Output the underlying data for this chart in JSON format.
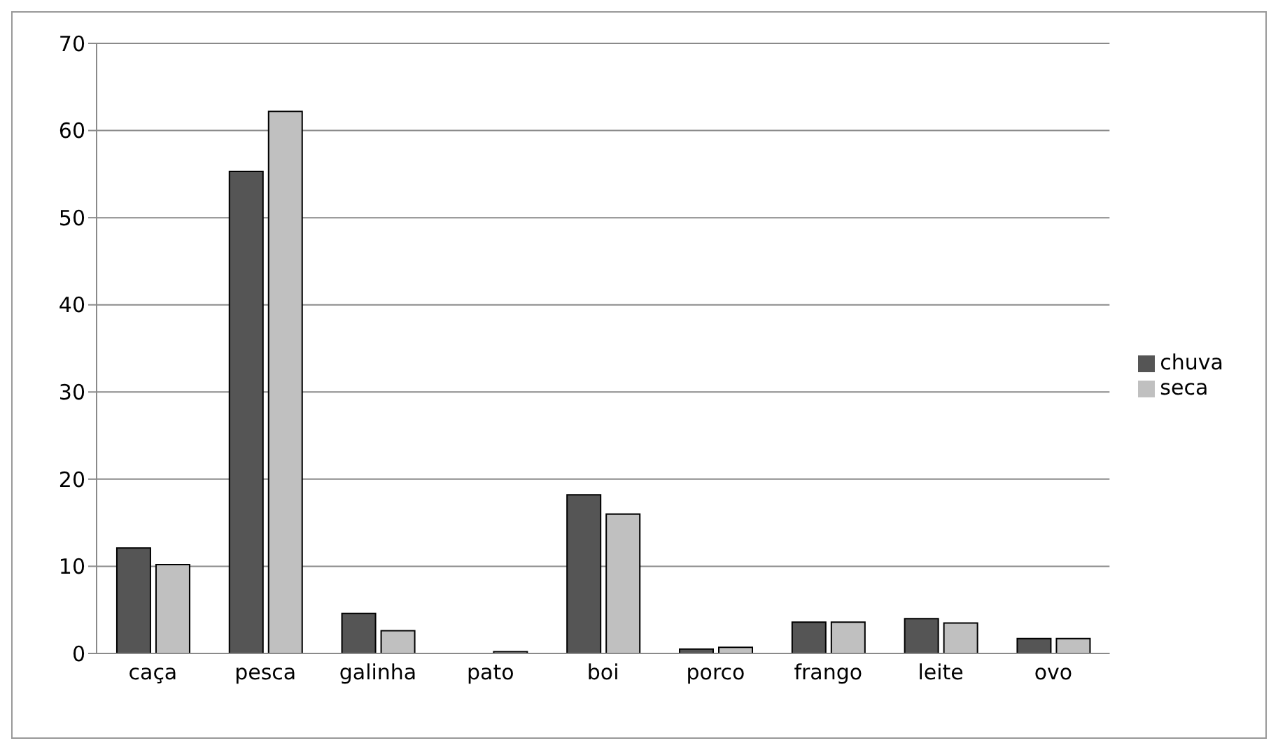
{
  "chart_data": {
    "type": "bar",
    "categories": [
      "caça",
      "pesca",
      "galinha",
      "pato",
      "boi",
      "porco",
      "frango",
      "leite",
      "ovo"
    ],
    "series": [
      {
        "name": "chuva",
        "color": "#555555",
        "values": [
          12.1,
          55.3,
          4.6,
          0,
          18.2,
          0.5,
          3.6,
          4.0,
          1.7
        ]
      },
      {
        "name": "seca",
        "color": "#c0c0c0",
        "values": [
          10.2,
          62.2,
          2.6,
          0.2,
          16.0,
          0.7,
          3.6,
          3.5,
          1.7
        ]
      }
    ],
    "ylim": [
      0,
      70
    ],
    "yticks": [
      0,
      10,
      20,
      30,
      40,
      50,
      60,
      70
    ],
    "grid": "y",
    "legend": "right"
  }
}
